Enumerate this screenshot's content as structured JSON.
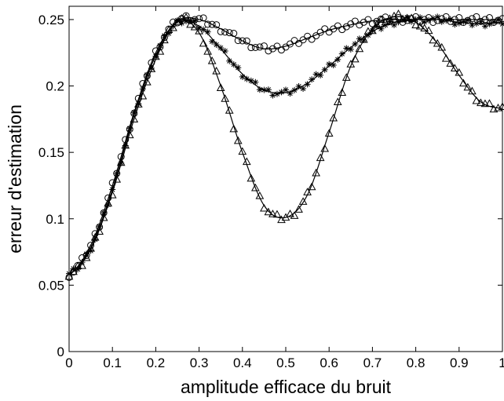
{
  "chart_data": {
    "type": "line",
    "title": "",
    "xlabel": "amplitude efficace du bruit",
    "ylabel": "erreur d'estimation",
    "xlim": [
      0,
      1
    ],
    "ylim": [
      0,
      0.26
    ],
    "grid": false,
    "legend": "none",
    "xticks": [
      0,
      0.1,
      0.2,
      0.3,
      0.4,
      0.5,
      0.6,
      0.7,
      0.8,
      0.9,
      1
    ],
    "xtick_labels": [
      "0",
      "0.1",
      "0.2",
      "0.3",
      "0.4",
      "0.5",
      "0.6",
      "0.7",
      "0.8",
      "0.9",
      "1"
    ],
    "yticks": [
      0,
      0.05,
      0.1,
      0.15,
      0.2,
      0.25
    ],
    "ytick_labels": [
      "0",
      "0.05",
      "0.1",
      "0.15",
      "0.2",
      "0.25"
    ],
    "series": [
      {
        "marker": "circle",
        "x": [
          0,
          0.05,
          0.1,
          0.15,
          0.2,
          0.25,
          0.3,
          0.35,
          0.4,
          0.45,
          0.5,
          0.55,
          0.6,
          0.65,
          0.7,
          0.75,
          0.8,
          0.85,
          0.9,
          0.95,
          1
        ],
        "y": [
          0.058,
          0.08,
          0.125,
          0.18,
          0.225,
          0.249,
          0.25,
          0.243,
          0.234,
          0.228,
          0.23,
          0.236,
          0.242,
          0.246,
          0.249,
          0.25,
          0.25,
          0.25,
          0.25,
          0.25,
          0.25
        ]
      },
      {
        "marker": "asterisk",
        "x": [
          0,
          0.05,
          0.1,
          0.15,
          0.2,
          0.25,
          0.3,
          0.35,
          0.4,
          0.45,
          0.5,
          0.55,
          0.6,
          0.65,
          0.7,
          0.75,
          0.8,
          0.85,
          0.9,
          0.95,
          1
        ],
        "y": [
          0.058,
          0.078,
          0.122,
          0.178,
          0.223,
          0.248,
          0.245,
          0.228,
          0.209,
          0.197,
          0.195,
          0.202,
          0.215,
          0.229,
          0.241,
          0.248,
          0.25,
          0.25,
          0.248,
          0.247,
          0.248
        ]
      },
      {
        "marker": "triangle",
        "x": [
          0,
          0.05,
          0.1,
          0.15,
          0.2,
          0.25,
          0.3,
          0.35,
          0.4,
          0.45,
          0.5,
          0.55,
          0.6,
          0.65,
          0.7,
          0.75,
          0.8,
          0.85,
          0.9,
          0.95,
          1
        ],
        "y": [
          0.058,
          0.077,
          0.12,
          0.175,
          0.22,
          0.249,
          0.24,
          0.2,
          0.15,
          0.11,
          0.101,
          0.118,
          0.165,
          0.215,
          0.243,
          0.252,
          0.248,
          0.232,
          0.208,
          0.188,
          0.183
        ]
      }
    ]
  }
}
